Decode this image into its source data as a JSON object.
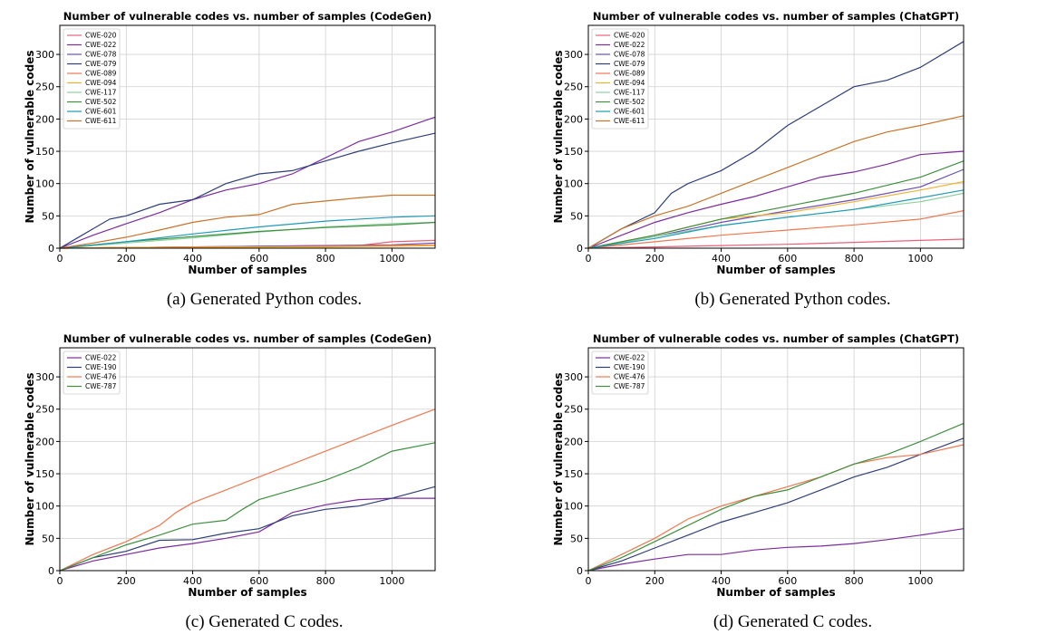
{
  "chart_data": [
    {
      "type": "line",
      "title": "Number of vulnerable codes vs. number of samples (CodeGen)",
      "xlabel": "Number of samples",
      "ylabel": "Number of vulnerable codes",
      "xlim": [
        0,
        1130
      ],
      "ylim": [
        0,
        345
      ],
      "xticks": [
        0,
        200,
        400,
        600,
        800,
        1000
      ],
      "yticks": [
        0,
        50,
        100,
        150,
        200,
        250,
        300
      ],
      "grid": true,
      "legend": "top-left",
      "caption": "(a) Generated Python codes.",
      "series": [
        {
          "name": "CWE-020",
          "color": "#e8627a",
          "x": [
            0,
            200,
            400,
            600,
            800,
            900,
            1000,
            1130
          ],
          "y": [
            0,
            1,
            2,
            3,
            4,
            4,
            10,
            12
          ]
        },
        {
          "name": "CWE-022",
          "color": "#7b2d9e",
          "x": [
            0,
            100,
            200,
            300,
            400,
            500,
            600,
            700,
            800,
            900,
            1000,
            1130
          ],
          "y": [
            0,
            20,
            38,
            55,
            75,
            90,
            100,
            115,
            140,
            165,
            180,
            203
          ]
        },
        {
          "name": "CWE-078",
          "color": "#6a4fb6",
          "x": [
            0,
            200,
            400,
            600,
            800,
            1000,
            1130
          ],
          "y": [
            0,
            1,
            2,
            3,
            4,
            5,
            8
          ]
        },
        {
          "name": "CWE-079",
          "color": "#2f3f78",
          "x": [
            0,
            50,
            100,
            150,
            200,
            300,
            400,
            500,
            600,
            700,
            800,
            900,
            1000,
            1130
          ],
          "y": [
            0,
            15,
            30,
            45,
            50,
            68,
            75,
            100,
            115,
            120,
            135,
            150,
            163,
            178
          ]
        },
        {
          "name": "CWE-089",
          "color": "#f07850",
          "x": [
            0,
            200,
            400,
            600,
            800,
            1000,
            1130
          ],
          "y": [
            0,
            1,
            2,
            2,
            3,
            4,
            5
          ]
        },
        {
          "name": "CWE-094",
          "color": "#f2b22e",
          "x": [
            0,
            200,
            400,
            600,
            800,
            1000,
            1130
          ],
          "y": [
            0,
            1,
            1,
            2,
            2,
            3,
            4
          ]
        },
        {
          "name": "CWE-117",
          "color": "#8fd0a0",
          "x": [
            0,
            200,
            400,
            600,
            800,
            1000,
            1130
          ],
          "y": [
            0,
            8,
            16,
            25,
            33,
            38,
            40
          ]
        },
        {
          "name": "CWE-502",
          "color": "#3f8f3f",
          "x": [
            0,
            200,
            400,
            600,
            800,
            1000,
            1130
          ],
          "y": [
            0,
            10,
            18,
            26,
            32,
            36,
            40
          ]
        },
        {
          "name": "CWE-601",
          "color": "#1f9bb8",
          "x": [
            0,
            200,
            400,
            600,
            800,
            1000,
            1130
          ],
          "y": [
            0,
            10,
            22,
            33,
            42,
            48,
            50
          ]
        },
        {
          "name": "CWE-611",
          "color": "#c8742a",
          "x": [
            0,
            100,
            200,
            300,
            400,
            500,
            600,
            700,
            800,
            900,
            1000,
            1130
          ],
          "y": [
            0,
            8,
            17,
            28,
            40,
            48,
            52,
            68,
            73,
            78,
            82,
            82
          ]
        }
      ]
    },
    {
      "type": "line",
      "title": "Number of vulnerable codes vs. number of samples (ChatGPT)",
      "xlabel": "Number of samples",
      "ylabel": "Number of vulnerable codes",
      "xlim": [
        0,
        1130
      ],
      "ylim": [
        0,
        345
      ],
      "xticks": [
        0,
        200,
        400,
        600,
        800,
        1000
      ],
      "yticks": [
        0,
        50,
        100,
        150,
        200,
        250,
        300
      ],
      "grid": true,
      "legend": "top-left",
      "caption": "(b) Generated Python codes.",
      "series": [
        {
          "name": "CWE-020",
          "color": "#e8627a",
          "x": [
            0,
            200,
            400,
            600,
            800,
            1000,
            1130
          ],
          "y": [
            0,
            2,
            4,
            6,
            9,
            12,
            14
          ]
        },
        {
          "name": "CWE-022",
          "color": "#7b2d9e",
          "x": [
            0,
            100,
            200,
            300,
            400,
            500,
            600,
            700,
            800,
            900,
            1000,
            1130
          ],
          "y": [
            0,
            20,
            40,
            55,
            68,
            80,
            95,
            110,
            118,
            130,
            145,
            150
          ]
        },
        {
          "name": "CWE-078",
          "color": "#6a4fb6",
          "x": [
            0,
            200,
            400,
            600,
            800,
            1000,
            1130
          ],
          "y": [
            0,
            18,
            40,
            58,
            75,
            95,
            122
          ]
        },
        {
          "name": "CWE-079",
          "color": "#2f3f78",
          "x": [
            0,
            100,
            200,
            250,
            300,
            400,
            500,
            600,
            700,
            800,
            900,
            1000,
            1130
          ],
          "y": [
            0,
            30,
            55,
            85,
            100,
            120,
            150,
            190,
            220,
            250,
            260,
            280,
            320
          ]
        },
        {
          "name": "CWE-089",
          "color": "#f07850",
          "x": [
            0,
            200,
            400,
            600,
            800,
            1000,
            1130
          ],
          "y": [
            0,
            10,
            20,
            28,
            36,
            45,
            58
          ]
        },
        {
          "name": "CWE-094",
          "color": "#f2b22e",
          "x": [
            0,
            200,
            400,
            600,
            800,
            1000,
            1130
          ],
          "y": [
            0,
            20,
            45,
            55,
            72,
            90,
            103
          ]
        },
        {
          "name": "CWE-117",
          "color": "#8fd0a0",
          "x": [
            0,
            200,
            400,
            600,
            800,
            1000,
            1130
          ],
          "y": [
            0,
            18,
            35,
            48,
            60,
            72,
            85
          ]
        },
        {
          "name": "CWE-502",
          "color": "#3f8f3f",
          "x": [
            0,
            200,
            400,
            600,
            800,
            1000,
            1130
          ],
          "y": [
            0,
            20,
            45,
            65,
            85,
            110,
            135
          ]
        },
        {
          "name": "CWE-601",
          "color": "#1f9bb8",
          "x": [
            0,
            200,
            400,
            600,
            800,
            1000,
            1130
          ],
          "y": [
            0,
            15,
            35,
            48,
            60,
            78,
            90
          ]
        },
        {
          "name": "CWE-611",
          "color": "#c8742a",
          "x": [
            0,
            100,
            200,
            300,
            400,
            500,
            600,
            700,
            800,
            900,
            1000,
            1130
          ],
          "y": [
            0,
            30,
            50,
            65,
            85,
            105,
            125,
            145,
            165,
            180,
            190,
            205
          ]
        }
      ]
    },
    {
      "type": "line",
      "title": "Number of vulnerable codes vs. number of samples (CodeGen)",
      "xlabel": "Number of samples",
      "ylabel": "Number of vulnerable codes",
      "xlim": [
        0,
        1130
      ],
      "ylim": [
        0,
        345
      ],
      "xticks": [
        0,
        200,
        400,
        600,
        800,
        1000
      ],
      "yticks": [
        0,
        50,
        100,
        150,
        200,
        250,
        300
      ],
      "grid": true,
      "legend": "top-left",
      "caption": "(c) Generated C codes.",
      "series": [
        {
          "name": "CWE-022",
          "color": "#7b2d9e",
          "x": [
            0,
            100,
            200,
            300,
            400,
            500,
            600,
            700,
            800,
            900,
            1000,
            1130
          ],
          "y": [
            0,
            15,
            25,
            35,
            42,
            50,
            60,
            90,
            102,
            110,
            112,
            112
          ]
        },
        {
          "name": "CWE-190",
          "color": "#2f3f78",
          "x": [
            0,
            100,
            200,
            300,
            400,
            500,
            600,
            700,
            800,
            900,
            1000,
            1130
          ],
          "y": [
            0,
            20,
            30,
            47,
            48,
            58,
            65,
            85,
            95,
            100,
            112,
            130
          ]
        },
        {
          "name": "CWE-476",
          "color": "#f07850",
          "x": [
            0,
            100,
            200,
            300,
            350,
            400,
            500,
            600,
            700,
            800,
            900,
            1000,
            1130
          ],
          "y": [
            0,
            25,
            45,
            70,
            90,
            105,
            125,
            145,
            165,
            185,
            205,
            225,
            250
          ]
        },
        {
          "name": "CWE-787",
          "color": "#3f8f3f",
          "x": [
            0,
            100,
            200,
            300,
            400,
            500,
            550,
            600,
            700,
            800,
            900,
            1000,
            1130
          ],
          "y": [
            0,
            20,
            40,
            55,
            72,
            78,
            95,
            110,
            125,
            140,
            160,
            185,
            198
          ]
        }
      ]
    },
    {
      "type": "line",
      "title": "Number of vulnerable codes vs. number of samples (ChatGPT)",
      "xlabel": "Number of samples",
      "ylabel": "Number of vulnerable codes",
      "xlim": [
        0,
        1130
      ],
      "ylim": [
        0,
        345
      ],
      "xticks": [
        0,
        200,
        400,
        600,
        800,
        1000
      ],
      "yticks": [
        0,
        50,
        100,
        150,
        200,
        250,
        300
      ],
      "grid": true,
      "legend": "top-left",
      "caption": "(d) Generated C codes.",
      "series": [
        {
          "name": "CWE-022",
          "color": "#7b2d9e",
          "x": [
            0,
            100,
            200,
            300,
            400,
            500,
            600,
            700,
            800,
            900,
            1000,
            1130
          ],
          "y": [
            0,
            10,
            18,
            25,
            25,
            32,
            36,
            38,
            42,
            48,
            55,
            65
          ]
        },
        {
          "name": "CWE-190",
          "color": "#2f3f78",
          "x": [
            0,
            100,
            200,
            300,
            400,
            500,
            600,
            700,
            800,
            900,
            1000,
            1130
          ],
          "y": [
            0,
            15,
            35,
            55,
            75,
            90,
            105,
            125,
            145,
            160,
            180,
            205
          ]
        },
        {
          "name": "CWE-476",
          "color": "#f07850",
          "x": [
            0,
            100,
            200,
            300,
            400,
            500,
            600,
            700,
            800,
            900,
            1000,
            1130
          ],
          "y": [
            0,
            25,
            50,
            80,
            100,
            115,
            130,
            145,
            165,
            175,
            180,
            195
          ]
        },
        {
          "name": "CWE-787",
          "color": "#3f8f3f",
          "x": [
            0,
            100,
            200,
            300,
            400,
            500,
            600,
            700,
            800,
            900,
            1000,
            1130
          ],
          "y": [
            0,
            20,
            45,
            70,
            95,
            115,
            125,
            145,
            165,
            180,
            200,
            228
          ]
        }
      ]
    }
  ]
}
